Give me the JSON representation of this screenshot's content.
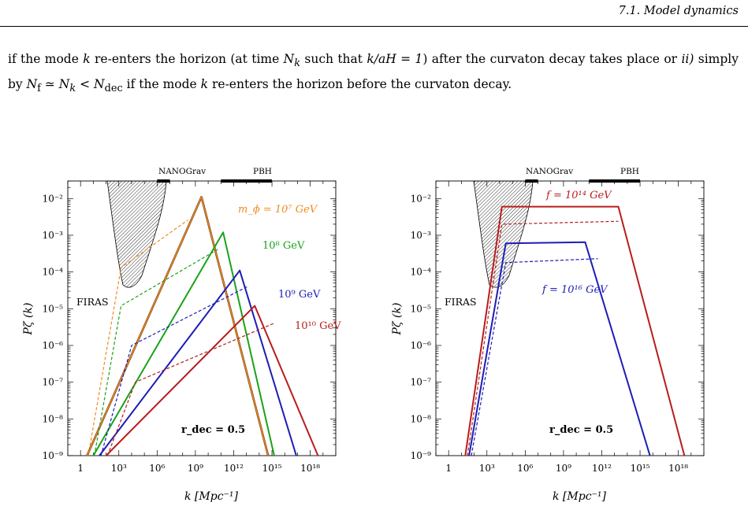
{
  "running_head": "7.1. Model dynamics",
  "paragraph": {
    "p1": "if the mode ",
    "p2": " re-enters the horizon (at time ",
    "p3": " such that ",
    "p4": ") after the curvaton decay takes place or ",
    "p5": "ii)",
    "p6": " simply by ",
    "p7": " if the mode ",
    "p8": " re-enters the horizon before the curvaton decay.",
    "k": "k",
    "Nk": "N",
    "Nk_sub": "k",
    "cond": "k/aH = 1",
    "eq": "N",
    "eq_sub1": "f",
    "eq_mid": " ≃ N",
    "eq_sub2": "k",
    "eq_lt": " < N",
    "eq_sub3": "dec"
  },
  "chart_data": [
    {
      "type": "line",
      "xscale": "log",
      "yscale": "log",
      "xlim": [
        0.1,
        1e+20
      ],
      "ylim": [
        1e-09,
        0.03
      ],
      "xlabel": "k  [Mpc⁻¹]",
      "ylabel": "Pζ (k)",
      "xticks": [
        "1",
        "10³",
        "10⁶",
        "10⁹",
        "10¹²",
        "10¹⁵",
        "10¹⁸"
      ],
      "yticks": [
        "10⁻⁹",
        "10⁻⁸",
        "10⁻⁷",
        "10⁻⁶",
        "10⁻⁵",
        "10⁻⁴",
        "10⁻³",
        "10⁻²"
      ],
      "constraints": [
        {
          "label": "NANOGrav",
          "x_range": [
            1000000.0,
            10000000.0
          ]
        },
        {
          "label": "PBH",
          "x_range": [
            100000000000.0,
            1000000000000000.0
          ]
        },
        {
          "label": "FIRAS"
        }
      ],
      "annotation": "r_dec = 0.5",
      "series": [
        {
          "name": "m_ϕ = 10⁷ GeV",
          "color": "#f08c22",
          "solid": [
            [
              3.2,
              1e-09
            ],
            [
              3000000000.0,
              0.011
            ],
            [
              500000000000000.0,
              1e-09
            ]
          ],
          "dashed": [
            [
              4,
              1e-09
            ],
            [
              1500.0,
              0.00013
            ],
            [
              260000000.0,
              0.0026
            ]
          ]
        },
        {
          "name": "10⁸ GeV",
          "color": "#1aa21a",
          "solid": [
            [
              10,
              1e-09
            ],
            [
              150000000000.0,
              0.0012
            ],
            [
              1500000000000000.0,
              1e-09
            ]
          ],
          "dashed": [
            [
              12,
              1e-09
            ],
            [
              1500.0,
              1.2e-05
            ],
            [
              70000000000.0,
              0.00043
            ]
          ]
        },
        {
          "name": "10⁹ GeV",
          "color": "#1d1db5",
          "solid": [
            [
              30,
              1e-09
            ],
            [
              3000000000000.0,
              0.00011
            ],
            [
              8e+16,
              1e-09
            ]
          ],
          "dashed": [
            [
              40,
              1e-09
            ],
            [
              10000.0,
              1e-06
            ],
            [
              12000000000000.0,
              4e-05
            ]
          ]
        },
        {
          "name": "10¹⁰ GeV",
          "color": "#b81c1c",
          "solid": [
            [
              100,
              1e-09
            ],
            [
              45000000000000.0,
              1.2e-05
            ],
            [
              4e+18,
              1e-09
            ]
          ],
          "dashed": [
            [
              130,
              1e-09
            ],
            [
              20000.0,
              1e-07
            ],
            [
              1400000000000000.0,
              4e-06
            ]
          ]
        }
      ]
    },
    {
      "type": "line",
      "xscale": "log",
      "yscale": "log",
      "xlim": [
        0.1,
        1e+20
      ],
      "ylim": [
        1e-09,
        0.03
      ],
      "xlabel": "k  [Mpc⁻¹]",
      "ylabel": "Pζ (k)",
      "xticks": [
        "1",
        "10³",
        "10⁶",
        "10⁹",
        "10¹²",
        "10¹⁵",
        "10¹⁸"
      ],
      "yticks": [
        "10⁻⁹",
        "10⁻⁸",
        "10⁻⁷",
        "10⁻⁶",
        "10⁻⁵",
        "10⁻⁴",
        "10⁻³",
        "10⁻²"
      ],
      "constraints": [
        {
          "label": "NANOGrav",
          "x_range": [
            1000000.0,
            10000000.0
          ]
        },
        {
          "label": "PBH",
          "x_range": [
            100000000000.0,
            1000000000000000.0
          ]
        },
        {
          "label": "FIRAS"
        }
      ],
      "annotation": "r_dec = 0.5",
      "series": [
        {
          "name": "f = 10¹⁴ GeV",
          "color": "#b81c1c",
          "solid": [
            [
              20,
              1e-09
            ],
            [
              15000.0,
              0.006
            ],
            [
              20000000000000.0,
              0.006
            ],
            [
              3e+18,
              1e-09
            ]
          ],
          "dashed": [
            [
              30,
              1e-09
            ],
            [
              15000.0,
              0.002
            ],
            [
              20000000000000.0,
              0.0024
            ]
          ]
        },
        {
          "name": "f = 10¹⁶ GeV",
          "color": "#1d1db5",
          "solid": [
            [
              40,
              1e-09
            ],
            [
              30000.0,
              0.0006
            ],
            [
              50000000000.0,
              0.00065
            ],
            [
              6000000000000000.0,
              1e-09
            ]
          ],
          "dashed": [
            [
              60,
              1e-09
            ],
            [
              30000.0,
              0.00018
            ],
            [
              500000000000.0,
              0.00023
            ]
          ]
        }
      ]
    }
  ]
}
